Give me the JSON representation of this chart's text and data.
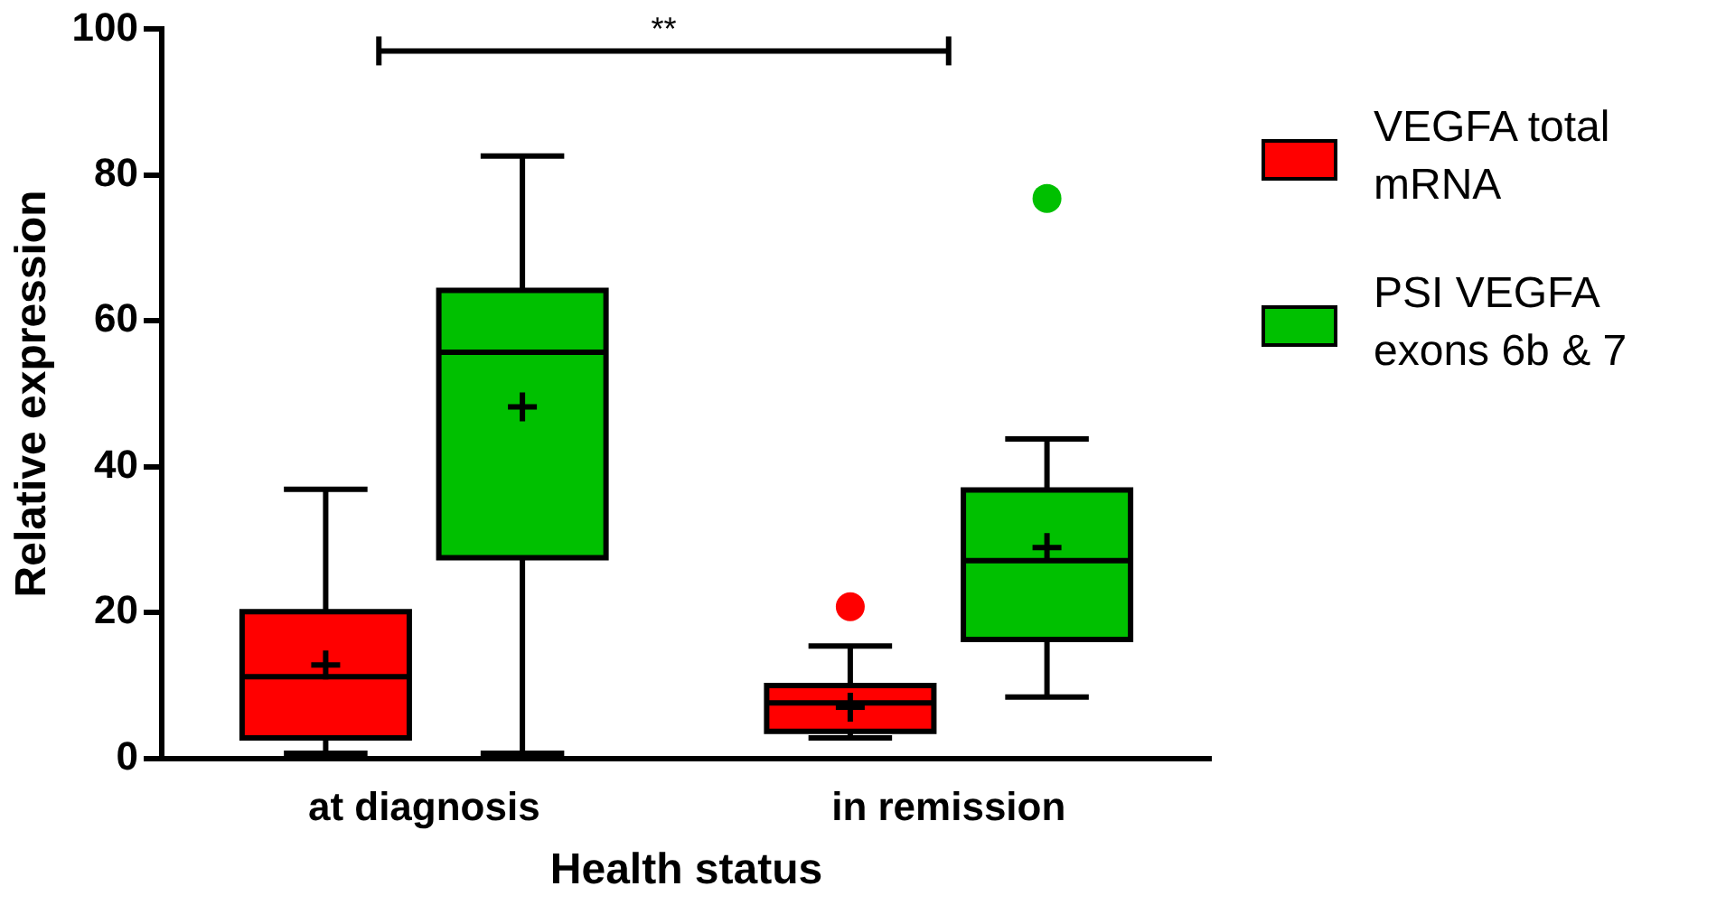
{
  "chart_data": {
    "type": "box",
    "xlabel": "Health status",
    "ylabel": "Relative expression",
    "categories": [
      "at diagnosis",
      "in remission"
    ],
    "ylim": [
      0,
      100
    ],
    "yticks": [
      0,
      20,
      40,
      60,
      80,
      100
    ],
    "grid": false,
    "legend": "right",
    "annotations": [
      "**"
    ],
    "series": [
      {
        "name": "VEGFA total mRNA",
        "color": "#ff0000",
        "boxes": [
          {
            "low": 0.7,
            "q1": 2.8,
            "median": 11.2,
            "q3": 20.1,
            "high": 36.9,
            "mean": 12.8
          },
          {
            "low": 2.8,
            "q1": 3.7,
            "median": 7.6,
            "q3": 10,
            "high": 15.4,
            "mean": 7,
            "outliers": [
              20.8
            ]
          }
        ]
      },
      {
        "name": "PSI VEGFA exons 6b & 7",
        "color": "#00c000",
        "boxes": [
          {
            "low": 0.7,
            "q1": 27.5,
            "median": 55.7,
            "q3": 64.2,
            "high": 82.6,
            "mean": 48.2
          },
          {
            "low": 8.4,
            "q1": 16.3,
            "median": 27.1,
            "q3": 36.8,
            "high": 43.8,
            "mean": 28.9,
            "outliers": [
              76.8
            ]
          }
        ]
      }
    ]
  }
}
